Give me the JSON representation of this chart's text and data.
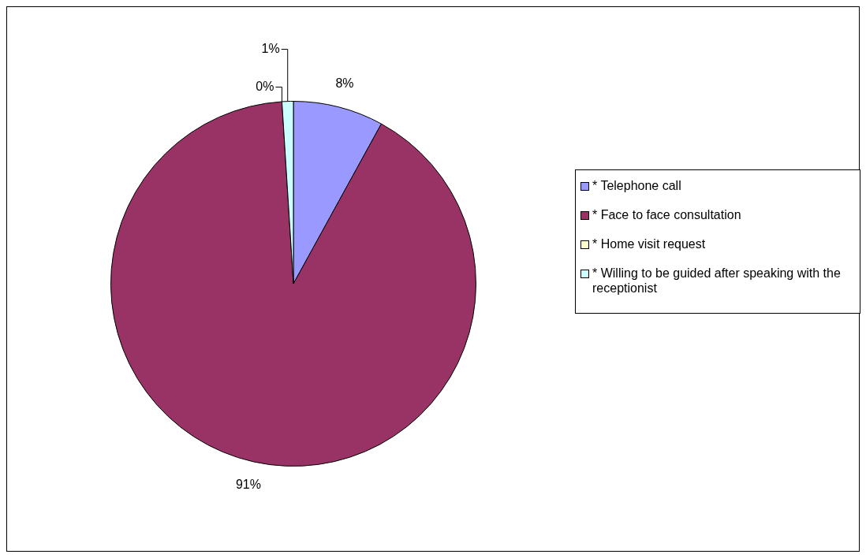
{
  "chart_data": {
    "type": "pie",
    "categories": [
      "* Telephone call",
      "* Face to face consultation",
      "* Home visit request",
      "* Willing to be guided after speaking with the receptionist"
    ],
    "values": [
      8,
      91,
      0,
      1
    ],
    "colors": [
      "#9999ff",
      "#993366",
      "#ffffcc",
      "#ccffff"
    ],
    "value_labels": [
      "8%",
      "91%",
      "0%",
      "1%"
    ],
    "legend": "right"
  }
}
